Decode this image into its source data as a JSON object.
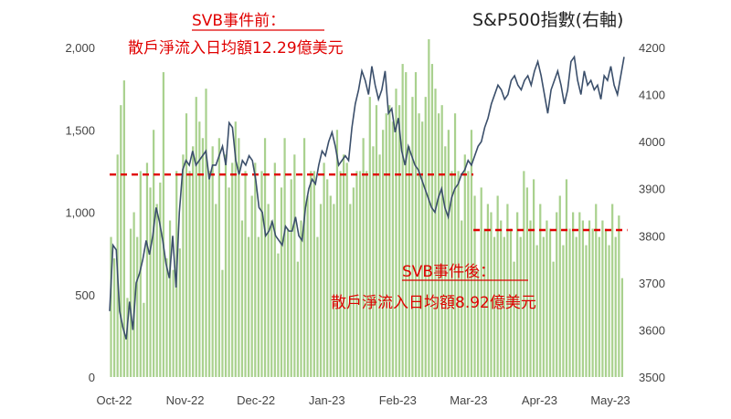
{
  "chart_data": {
    "type": "bar",
    "title": "S&P500指數(右軸)",
    "x_tick_labels": [
      "Oct-22",
      "Nov-22",
      "Dec-22",
      "Jan-23",
      "Feb-23",
      "Mar-23",
      "Apr-23",
      "May-23"
    ],
    "y_left": {
      "range": [
        0,
        2000
      ],
      "ticks": [
        "0",
        "500",
        "1,000",
        "1,500",
        "2,000"
      ]
    },
    "y_right": {
      "range": [
        3500,
        4200
      ],
      "ticks": [
        "3500",
        "3600",
        "3700",
        "3800",
        "3900",
        "4000",
        "4100",
        "4200"
      ]
    },
    "grid": false,
    "colors": {
      "bars": "#a9d18e",
      "line": "#3b4f6b",
      "annotation": "#e00000",
      "reference_line": "#e00000"
    },
    "annotations": {
      "before_title": "SVB事件前：",
      "before_text": "散戶淨流入日均額12.29億美元",
      "after_title": "SVB事件後：",
      "after_text": "散戶淨流入日均額8.92億美元"
    },
    "reference_lines": [
      {
        "value": 1229,
        "from_bar": 0,
        "to_bar": 110
      },
      {
        "value": 892,
        "from_bar": 111,
        "to_bar": 157
      }
    ],
    "bar_values": [
      850,
      720,
      1350,
      1650,
      1800,
      480,
      900,
      1000,
      850,
      1250,
      450,
      1300,
      1150,
      1500,
      1050,
      1180,
      1850,
      720,
      950,
      650,
      1250,
      780,
      1350,
      1600,
      1250,
      1400,
      1700,
      1550,
      1450,
      1750,
      1250,
      1400,
      1050,
      1450,
      650,
      1350,
      1150,
      1300,
      1550,
      1450,
      950,
      1250,
      850,
      1100,
      1300,
      850,
      1250,
      1450,
      1050,
      950,
      1300,
      750,
      1150,
      1450,
      900,
      1200,
      1350,
      700,
      950,
      1450,
      1100,
      1250,
      1250,
      850,
      1050,
      1300,
      1200,
      1100,
      1050,
      1500,
      1250,
      1350,
      1300,
      1050,
      1150,
      1250,
      1250,
      1450,
      1250,
      1700,
      1400,
      1650,
      1350,
      1500,
      1600,
      1650,
      1550,
      1750,
      1650,
      1900,
      1850,
      1400,
      1700,
      1850,
      1600,
      1550,
      1700,
      2050,
      1900,
      1750,
      1600,
      1650,
      1400,
      1500,
      1250,
      1600,
      1250,
      950,
      1350,
      1250,
      1500,
      1100,
      650,
      1150,
      900,
      1050,
      1000,
      850,
      1100,
      950,
      850,
      1050,
      900,
      700,
      1000,
      850,
      1250,
      1150,
      950,
      1200,
      800,
      1050,
      850,
      950,
      900,
      700,
      1000,
      1100,
      800,
      1200,
      900,
      1000,
      850,
      1000,
      950,
      800,
      950,
      900,
      1050,
      850,
      950,
      900,
      800,
      1050,
      850,
      980,
      600
    ],
    "line_values": [
      3640,
      3780,
      3770,
      3640,
      3605,
      3580,
      3660,
      3600,
      3700,
      3720,
      3750,
      3790,
      3760,
      3800,
      3860,
      3830,
      3790,
      3740,
      3710,
      3800,
      3690,
      3850,
      3940,
      3960,
      3950,
      3980,
      3950,
      3960,
      3970,
      3980,
      3920,
      3950,
      3950,
      3970,
      3990,
      3950,
      4040,
      4030,
      3960,
      3930,
      3960,
      3950,
      3970,
      3960,
      3920,
      3860,
      3850,
      3800,
      3810,
      3830,
      3800,
      3790,
      3780,
      3820,
      3810,
      3810,
      3840,
      3800,
      3790,
      3860,
      3900,
      3920,
      3910,
      3950,
      3980,
      3970,
      4000,
      4020,
      3990,
      3950,
      3960,
      3970,
      3960,
      4030,
      4080,
      4110,
      4150,
      4130,
      4100,
      4160,
      4120,
      4090,
      4110,
      4150,
      4060,
      4070,
      4020,
      4050,
      3980,
      3950,
      3990,
      3970,
      3950,
      3940,
      3920,
      3900,
      3880,
      3860,
      3850,
      3880,
      3900,
      3860,
      3840,
      3880,
      3900,
      3910,
      3930,
      3940,
      3960,
      3950,
      3970,
      3990,
      4000,
      4030,
      4050,
      4080,
      4100,
      4120,
      4110,
      4090,
      4100,
      4130,
      4140,
      4120,
      4110,
      4130,
      4140,
      4120,
      4150,
      4170,
      4140,
      4100,
      4060,
      4110,
      4130,
      4150,
      4120,
      4080,
      4110,
      4170,
      4180,
      4130,
      4100,
      4150,
      4120,
      4130,
      4110,
      4120,
      4090,
      4140,
      4130,
      4160,
      4120,
      4100,
      4140,
      4180
    ]
  }
}
